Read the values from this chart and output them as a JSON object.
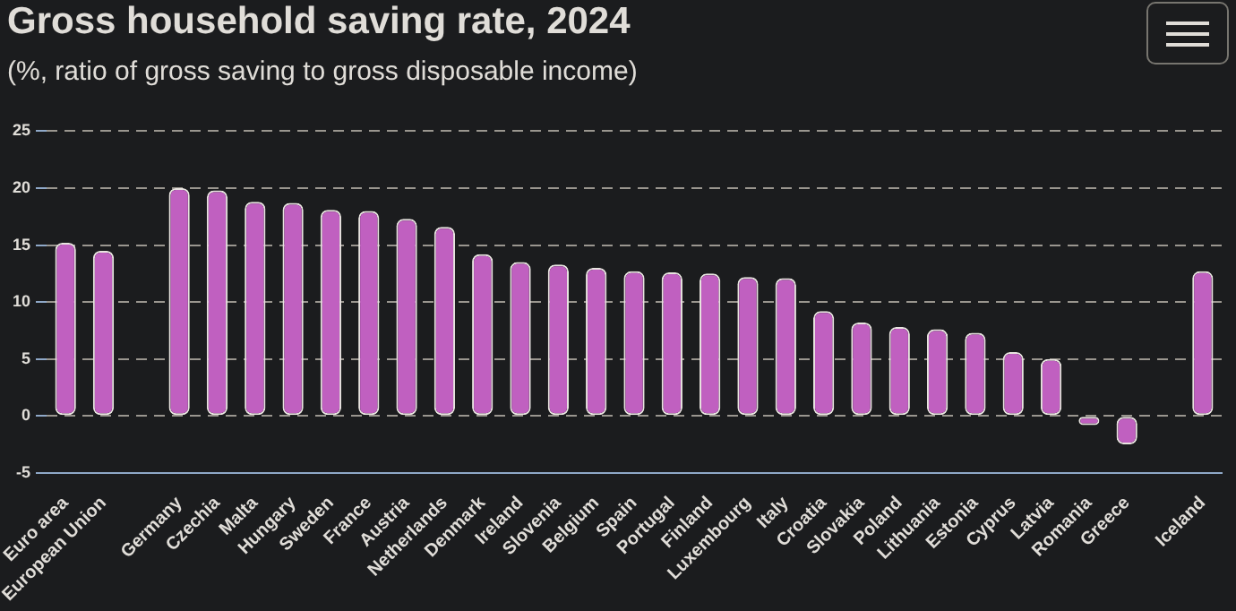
{
  "chart_data": {
    "type": "bar",
    "title": "Gross household saving rate, 2024",
    "subtitle": "(%, ratio of gross saving to gross disposable income)",
    "categories": [
      "Euro area",
      "European Union",
      null,
      "Germany",
      "Czechia",
      "Malta",
      "Hungary",
      "Sweden",
      "France",
      "Austria",
      "Netherlands",
      "Denmark",
      "Ireland",
      "Slovenia",
      "Belgium",
      "Spain",
      "Portugal",
      "Finland",
      "Luxembourg",
      "Italy",
      "Croatia",
      "Slovakia",
      "Poland",
      "Lithuania",
      "Estonia",
      "Cyprus",
      "Latvia",
      "Romania",
      "Greece",
      null,
      "Iceland"
    ],
    "values": [
      15.2,
      14.5,
      null,
      20.0,
      19.8,
      18.8,
      18.7,
      18.1,
      18.0,
      17.3,
      16.6,
      14.2,
      13.5,
      13.3,
      13.0,
      12.7,
      12.6,
      12.5,
      12.2,
      12.1,
      9.2,
      8.2,
      7.8,
      7.6,
      7.3,
      5.6,
      5.0,
      -0.8,
      -2.5,
      null,
      12.7
    ],
    "color": "#c060c0",
    "ylim": [
      -5,
      25
    ],
    "yticks": [
      -5,
      0,
      5,
      10,
      15,
      20,
      25
    ],
    "grid": "y",
    "legend": false
  }
}
